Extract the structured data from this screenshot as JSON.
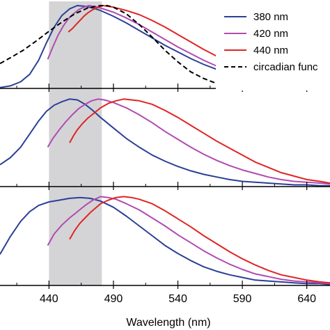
{
  "chart_data": {
    "type": "line",
    "xlabel": "Wavelength (nm)",
    "xlim": [
      402,
      658
    ],
    "xticks": [
      440,
      490,
      540,
      590,
      640
    ],
    "ylim": [
      0,
      1.05
    ],
    "highlight_band": {
      "from": 440,
      "to": 481,
      "color": "#d4d4d6"
    },
    "legend": {
      "position": "top-right",
      "entries": [
        {
          "label": "380 nm",
          "color": "#2b3f97",
          "style": "solid"
        },
        {
          "label": "420 nm",
          "color": "#b04bb0",
          "style": "solid"
        },
        {
          "label": "440 nm",
          "color": "#e02424",
          "style": "solid"
        },
        {
          "label": "circadian func",
          "color": "#000000",
          "style": "dashed"
        }
      ]
    },
    "panels": [
      {
        "series": [
          {
            "name": "380 nm",
            "color": "#2b3f97",
            "x": [
              402,
              410,
              418,
              425,
              432,
              438,
              444,
              450,
              456,
              462,
              468,
              474,
              480,
              490,
              500,
              510,
              520,
              530,
              540,
              550,
              560,
              570,
              580,
              590,
              600,
              610,
              620,
              630,
              640,
              650,
              658
            ],
            "y": [
              0.01,
              0.03,
              0.08,
              0.17,
              0.34,
              0.55,
              0.74,
              0.88,
              0.96,
              1.0,
              0.99,
              0.97,
              0.94,
              0.87,
              0.79,
              0.7,
              0.61,
              0.52,
              0.44,
              0.36,
              0.29,
              0.23,
              0.18,
              0.14,
              0.1,
              0.07,
              0.05,
              0.04,
              0.03,
              0.02,
              0.01
            ]
          },
          {
            "name": "420 nm",
            "color": "#b04bb0",
            "x": [
              439,
              443,
              447,
              451,
              455,
              459,
              463,
              467,
              471,
              475,
              480,
              490,
              500,
              510,
              520,
              530,
              540,
              550,
              560,
              570,
              580,
              590,
              600,
              610,
              620,
              630,
              640,
              650,
              658
            ],
            "y": [
              0.35,
              0.5,
              0.64,
              0.75,
              0.84,
              0.9,
              0.95,
              0.98,
              1.0,
              0.99,
              0.97,
              0.92,
              0.85,
              0.77,
              0.68,
              0.59,
              0.5,
              0.42,
              0.34,
              0.27,
              0.21,
              0.16,
              0.12,
              0.09,
              0.06,
              0.05,
              0.03,
              0.02,
              0.02
            ]
          },
          {
            "name": "440 nm",
            "color": "#e02424",
            "x": [
              455,
              458,
              461,
              464,
              467,
              470,
              474,
              478,
              482,
              486,
              490,
              500,
              510,
              520,
              530,
              540,
              550,
              560,
              570,
              580,
              590,
              600,
              610,
              620,
              630,
              640,
              650,
              658
            ],
            "y": [
              0.68,
              0.72,
              0.77,
              0.82,
              0.87,
              0.91,
              0.95,
              0.98,
              1.0,
              0.99,
              0.98,
              0.94,
              0.89,
              0.82,
              0.74,
              0.65,
              0.56,
              0.47,
              0.39,
              0.31,
              0.24,
              0.18,
              0.13,
              0.1,
              0.07,
              0.05,
              0.03,
              0.02
            ]
          },
          {
            "name": "circadian func",
            "color": "#000000",
            "x": [
              402,
              410,
              420,
              430,
              440,
              450,
              460,
              470,
              480,
              485,
              490,
              500,
              510,
              520,
              530,
              540,
              550,
              560,
              570,
              580,
              590,
              600,
              610
            ],
            "y": [
              0.3,
              0.37,
              0.46,
              0.57,
              0.69,
              0.8,
              0.9,
              0.97,
              1.0,
              1.0,
              0.98,
              0.9,
              0.77,
              0.62,
              0.46,
              0.32,
              0.2,
              0.12,
              0.06,
              0.03,
              0.01,
              0.005,
              0.0
            ]
          }
        ]
      },
      {
        "series": [
          {
            "name": "380 nm",
            "color": "#2b3f97",
            "x": [
              402,
              410,
              418,
              425,
              432,
              438,
              444,
              450,
              456,
              462,
              468,
              474,
              480,
              490,
              500,
              510,
              520,
              530,
              540,
              550,
              560,
              570,
              580,
              590,
              600,
              610,
              620,
              630,
              640,
              650,
              658
            ],
            "y": [
              0.25,
              0.33,
              0.45,
              0.6,
              0.75,
              0.86,
              0.93,
              0.97,
              1.0,
              0.99,
              0.94,
              0.87,
              0.79,
              0.67,
              0.55,
              0.45,
              0.36,
              0.29,
              0.23,
              0.18,
              0.14,
              0.11,
              0.08,
              0.06,
              0.05,
              0.04,
              0.03,
              0.02,
              0.02,
              0.01,
              0.01
            ]
          },
          {
            "name": "420 nm",
            "color": "#b04bb0",
            "x": [
              439,
              443,
              448,
              453,
              458,
              463,
              468,
              473,
              478,
              483,
              490,
              500,
              510,
              520,
              530,
              540,
              550,
              560,
              570,
              580,
              590,
              600,
              610,
              620,
              630,
              640,
              650,
              658
            ],
            "y": [
              0.45,
              0.55,
              0.65,
              0.74,
              0.82,
              0.89,
              0.94,
              0.98,
              1.0,
              0.99,
              0.96,
              0.9,
              0.82,
              0.73,
              0.63,
              0.54,
              0.45,
              0.37,
              0.3,
              0.24,
              0.19,
              0.15,
              0.11,
              0.08,
              0.06,
              0.05,
              0.04,
              0.03
            ]
          },
          {
            "name": "440 nm",
            "color": "#e02424",
            "x": [
              456,
              459,
              462,
              466,
              470,
              475,
              480,
              486,
              492,
              498,
              504,
              510,
              520,
              530,
              540,
              550,
              560,
              570,
              580,
              590,
              600,
              610,
              620,
              630,
              640,
              650,
              658
            ],
            "y": [
              0.5,
              0.58,
              0.65,
              0.72,
              0.78,
              0.84,
              0.9,
              0.95,
              0.98,
              1.0,
              0.99,
              0.98,
              0.94,
              0.87,
              0.79,
              0.7,
              0.61,
              0.52,
              0.44,
              0.36,
              0.28,
              0.22,
              0.16,
              0.12,
              0.08,
              0.06,
              0.04
            ]
          }
        ]
      },
      {
        "series": [
          {
            "name": "380 nm",
            "color": "#2b3f97",
            "x": [
              402,
              410,
              418,
              425,
              432,
              440,
              448,
              456,
              464,
              472,
              480,
              490,
              500,
              510,
              520,
              530,
              540,
              550,
              560,
              570,
              580,
              590,
              600,
              610,
              620,
              630,
              640,
              650,
              658
            ],
            "y": [
              0.35,
              0.55,
              0.72,
              0.83,
              0.9,
              0.94,
              0.96,
              0.98,
              0.99,
              0.98,
              0.95,
              0.88,
              0.78,
              0.67,
              0.56,
              0.45,
              0.36,
              0.28,
              0.21,
              0.16,
              0.12,
              0.09,
              0.06,
              0.05,
              0.04,
              0.03,
              0.02,
              0.02,
              0.01
            ]
          },
          {
            "name": "420 nm",
            "color": "#b04bb0",
            "x": [
              439,
              444,
              450,
              456,
              462,
              468,
              474,
              480,
              486,
              492,
              500,
              510,
              520,
              530,
              540,
              550,
              560,
              570,
              580,
              590,
              600,
              610,
              620,
              630,
              640,
              650,
              658
            ],
            "y": [
              0.45,
              0.58,
              0.68,
              0.76,
              0.83,
              0.9,
              0.96,
              1.0,
              0.99,
              0.97,
              0.92,
              0.85,
              0.76,
              0.67,
              0.57,
              0.48,
              0.39,
              0.31,
              0.24,
              0.18,
              0.13,
              0.1,
              0.07,
              0.05,
              0.04,
              0.03,
              0.02
            ]
          },
          {
            "name": "440 nm",
            "color": "#e02424",
            "x": [
              456,
              460,
              464,
              468,
              472,
              476,
              480,
              486,
              492,
              498,
              504,
              510,
              520,
              530,
              540,
              550,
              560,
              570,
              580,
              590,
              600,
              610,
              620,
              630,
              640,
              650,
              658
            ],
            "y": [
              0.52,
              0.62,
              0.7,
              0.76,
              0.82,
              0.87,
              0.92,
              0.96,
              0.99,
              1.0,
              0.99,
              0.97,
              0.92,
              0.84,
              0.75,
              0.66,
              0.56,
              0.47,
              0.38,
              0.3,
              0.23,
              0.17,
              0.12,
              0.09,
              0.06,
              0.04,
              0.03
            ]
          }
        ]
      }
    ]
  }
}
